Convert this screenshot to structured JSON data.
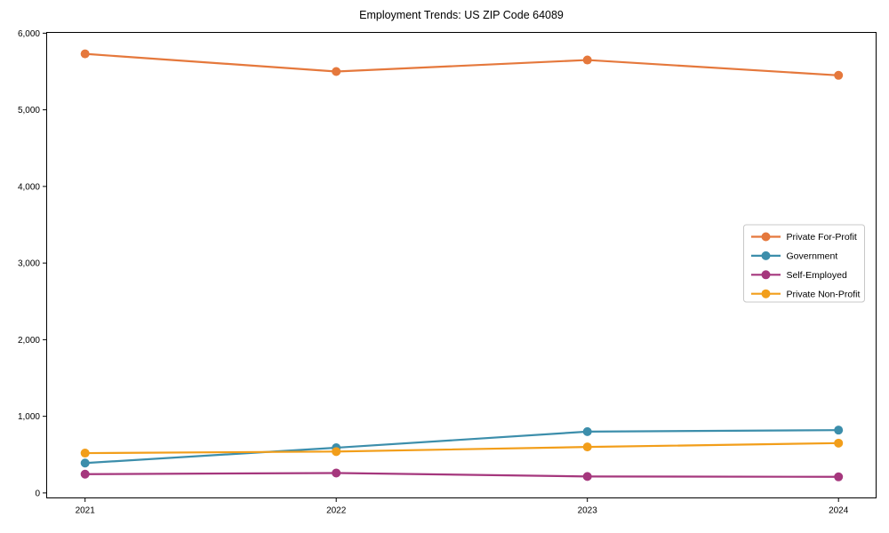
{
  "chart_data": {
    "type": "line",
    "title": "Employment Trends: US ZIP Code 64089",
    "xlabel": "",
    "ylabel": "",
    "categories": [
      "2021",
      "2022",
      "2023",
      "2024"
    ],
    "series": [
      {
        "name": "Private For-Profit",
        "color": "#E5783C",
        "values": [
          5730,
          5500,
          5650,
          5450
        ]
      },
      {
        "name": "Government",
        "color": "#3C8EAB",
        "values": [
          390,
          590,
          800,
          820
        ]
      },
      {
        "name": "Self-Employed",
        "color": "#A5377D",
        "values": [
          245,
          260,
          215,
          210
        ]
      },
      {
        "name": "Private Non-Profit",
        "color": "#F29E1A",
        "values": [
          520,
          540,
          600,
          650
        ]
      }
    ],
    "ylim": [
      0,
      6000
    ],
    "ytick_step": 1000,
    "ytick_labels": [
      "0",
      "1,000",
      "2,000",
      "3,000",
      "4,000",
      "5,000",
      "6,000"
    ],
    "grid": false,
    "legend_position": "center right",
    "axis_color": "#000000",
    "background_color": "#ffffff",
    "legend_border_color": "#c8c8c8"
  }
}
